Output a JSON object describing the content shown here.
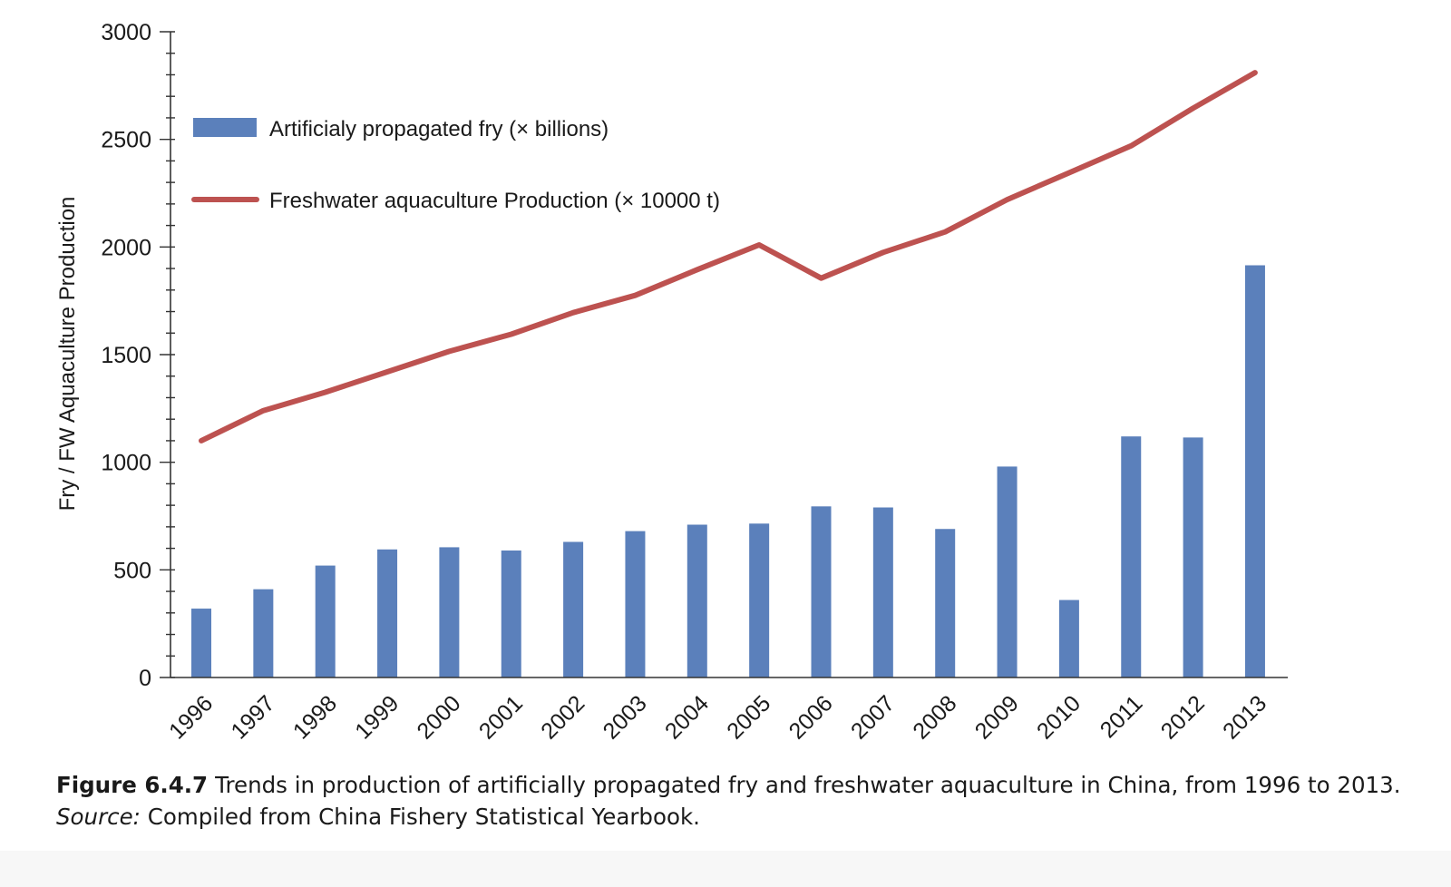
{
  "chart_data": {
    "type": "bar",
    "ylabel": "Fry / FW Aquaculture Production",
    "ylim": [
      0,
      3000
    ],
    "y_ticks": [
      "0",
      "500",
      "1000",
      "1500",
      "2000",
      "2500",
      "3000"
    ],
    "categories": [
      "1996",
      "1997",
      "1998",
      "1999",
      "2000",
      "2001",
      "2002",
      "2003",
      "2004",
      "2005",
      "2006",
      "2007",
      "2008",
      "2009",
      "2010",
      "2011",
      "2012",
      "2013"
    ],
    "series": [
      {
        "name": "Artificialy propagated fry (× billions)",
        "type": "bar",
        "color": "#5b80bb",
        "values": [
          320,
          410,
          520,
          595,
          605,
          590,
          630,
          680,
          710,
          715,
          795,
          790,
          690,
          980,
          360,
          1120,
          1115,
          1915
        ]
      },
      {
        "name": "Freshwater aquaculture Production (× 10000 t)",
        "type": "line",
        "color": "#bd5250",
        "values": [
          1100,
          1240,
          1325,
          1420,
          1515,
          1595,
          1695,
          1775,
          1895,
          2010,
          1855,
          1975,
          2070,
          2220,
          2345,
          2470,
          2645,
          2810
        ]
      }
    ],
    "legend_position": "top-left",
    "grid": false
  },
  "caption": {
    "figure_label": "Figure 6.4.7",
    "text": "Trends in production of artificially propagated fry and freshwater aquaculture in China, from 1996 to 2013.",
    "source_label": "Source:",
    "source_text": "Compiled from China Fishery Statistical Yearbook."
  }
}
